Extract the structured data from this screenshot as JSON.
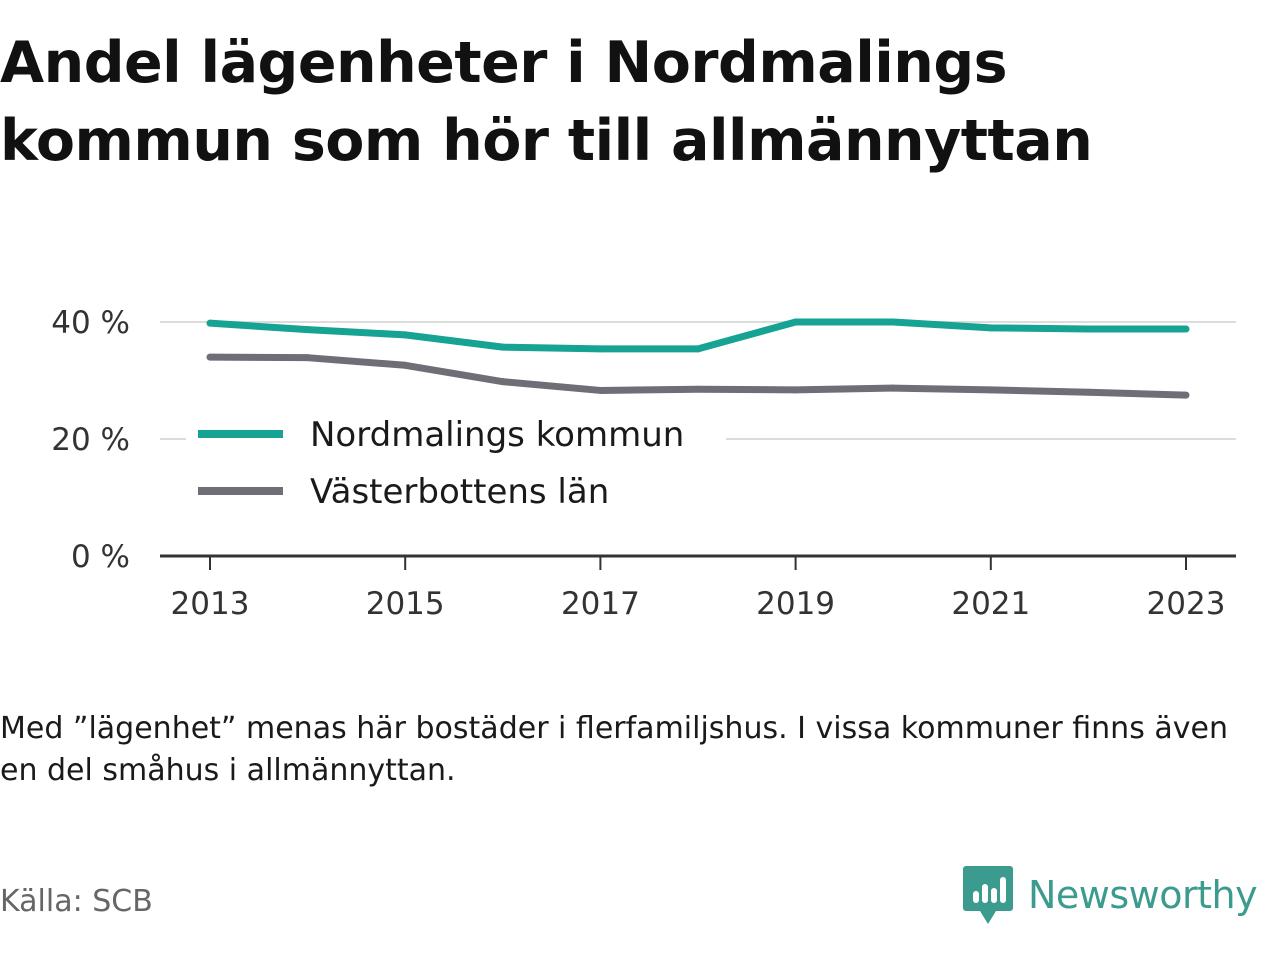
{
  "title": "Andel lägenheter i Nordmalings kommun som hör till allmännyttan",
  "note": "Med ”lägenhet” menas här bostäder i flerfamiljshus. I vissa kommuner finns även en del småhus i allmännyttan.",
  "source": "Källa: SCB",
  "brand": {
    "name": "Newsworthy",
    "color": "#3c9b8f"
  },
  "chart_data": {
    "type": "line",
    "title": "Andel lägenheter i Nordmalings kommun som hör till allmännyttan",
    "xlabel": "",
    "ylabel": "",
    "ylim": [
      0,
      40
    ],
    "yticks": [
      0,
      20,
      40
    ],
    "ytick_labels": [
      "0 %",
      "20 %",
      "40 %"
    ],
    "xlim": [
      2012.5,
      2023.5
    ],
    "xticks": [
      2013,
      2015,
      2017,
      2019,
      2021,
      2023
    ],
    "xtick_labels": [
      "2013",
      "2015",
      "2017",
      "2019",
      "2021",
      "2023"
    ],
    "x": [
      2013,
      2014,
      2015,
      2016,
      2017,
      2018,
      2019,
      2020,
      2021,
      2022,
      2023
    ],
    "grid": true,
    "legend": "center-left",
    "series": [
      {
        "name": "Nordmalings kommun",
        "color": "#16a394",
        "values": [
          39.8,
          38.7,
          37.8,
          35.7,
          35.4,
          35.4,
          40.0,
          40.0,
          39.0,
          38.8,
          38.8
        ]
      },
      {
        "name": "Västerbottens län",
        "color": "#6e6e76",
        "values": [
          34.0,
          33.9,
          32.6,
          29.8,
          28.3,
          28.5,
          28.4,
          28.7,
          28.4,
          28.0,
          27.5
        ]
      }
    ]
  }
}
